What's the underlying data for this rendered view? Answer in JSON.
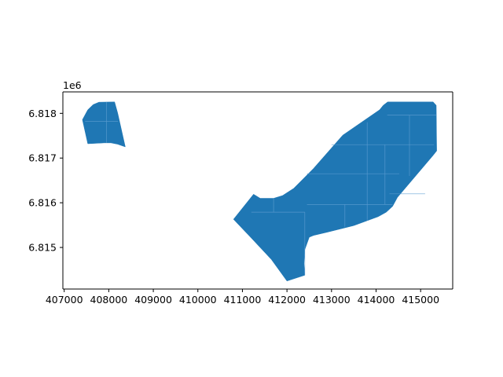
{
  "chart_data": {
    "type": "map",
    "x_ticks": [
      "407000",
      "408000",
      "409000",
      "410000",
      "411000",
      "412000",
      "413000",
      "414000",
      "415000"
    ],
    "y_ticks": [
      "6.815",
      "6.816",
      "6.817",
      "6.818"
    ],
    "y_offset_label": "1e6",
    "colors": {
      "fill": "#1f77b4",
      "grid": "#5a9bd0"
    },
    "xlim": [
      406970,
      415720
    ],
    "ylim": [
      6814070,
      6818480
    ],
    "polygons": [
      {
        "name": "polygon-west",
        "points": [
          [
            407410,
            6817858
          ],
          [
            407530,
            6818080
          ],
          [
            407650,
            6818195
          ],
          [
            407780,
            6818250
          ],
          [
            408130,
            6818255
          ],
          [
            408200,
            6818010
          ],
          [
            408370,
            6817250
          ],
          [
            408200,
            6817310
          ],
          [
            408050,
            6817340
          ],
          [
            407900,
            6817340
          ],
          [
            407530,
            6817320
          ]
        ],
        "internal_lines": [
          [
            [
              407950,
              6818255
            ],
            [
              407950,
              6817340
            ]
          ],
          [
            [
              407470,
              6817820
            ],
            [
              408210,
              6817820
            ]
          ]
        ]
      },
      {
        "name": "polygon-east",
        "points": [
          [
            414260,
            6818255
          ],
          [
            415280,
            6818255
          ],
          [
            415350,
            6818180
          ],
          [
            415360,
            6817160
          ],
          [
            415280,
            6817060
          ],
          [
            414480,
            6816120
          ],
          [
            414370,
            6815920
          ],
          [
            414230,
            6815790
          ],
          [
            414050,
            6815690
          ],
          [
            413500,
            6815490
          ],
          [
            412900,
            6815340
          ],
          [
            412600,
            6815270
          ],
          [
            412500,
            6815230
          ],
          [
            412400,
            6814950
          ],
          [
            412380,
            6814640
          ],
          [
            412400,
            6814380
          ],
          [
            412000,
            6814250
          ],
          [
            411650,
            6814730
          ],
          [
            411200,
            6815210
          ],
          [
            410800,
            6815630
          ],
          [
            411250,
            6816190
          ],
          [
            411400,
            6816100
          ],
          [
            411700,
            6816100
          ],
          [
            411900,
            6816160
          ],
          [
            412150,
            6816320
          ],
          [
            412600,
            6816770
          ],
          [
            413250,
            6817510
          ],
          [
            414080,
            6818080
          ],
          [
            414160,
            6818180
          ]
        ],
        "internal_lines": [
          [
            [
              411200,
              6815790
            ],
            [
              412400,
              6815790
            ]
          ],
          [
            [
              412400,
              6815790
            ],
            [
              412400,
              6814380
            ]
          ],
          [
            [
              411700,
              6816100
            ],
            [
              411700,
              6815790
            ]
          ],
          [
            [
              412450,
              6816650
            ],
            [
              414520,
              6816650
            ]
          ],
          [
            [
              412450,
              6815960
            ],
            [
              414370,
              6815960
            ]
          ],
          [
            [
              413000,
              6817300
            ],
            [
              415300,
              6817300
            ]
          ],
          [
            [
              414250,
              6817960
            ],
            [
              415360,
              6817960
            ]
          ],
          [
            [
              413300,
              6815960
            ],
            [
              413300,
              6815460
            ]
          ],
          [
            [
              413800,
              6817800
            ],
            [
              413800,
              6815600
            ]
          ],
          [
            [
              414750,
              6817960
            ],
            [
              414750,
              6816600
            ]
          ],
          [
            [
              414300,
              6816200
            ],
            [
              415100,
              6816200
            ]
          ],
          [
            [
              414200,
              6817300
            ],
            [
              414200,
              6815960
            ]
          ]
        ]
      }
    ]
  }
}
